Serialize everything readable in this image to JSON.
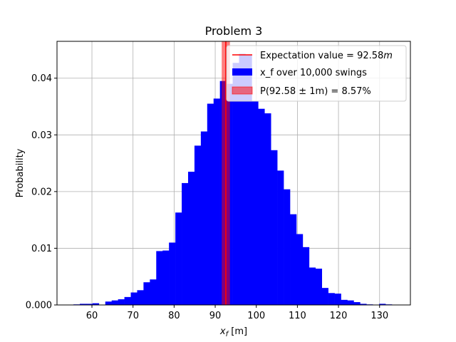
{
  "chart_data": {
    "type": "bar",
    "title": "Problem 3",
    "xlabel": "x_f [m]",
    "xlabel_main": "x",
    "xlabel_sub": "f",
    "xlabel_unit": " [m]",
    "ylabel": "Probability",
    "xlim": [
      51.5,
      137.5
    ],
    "ylim": [
      0,
      0.0465
    ],
    "xticks": [
      60,
      70,
      80,
      90,
      100,
      110,
      120,
      130
    ],
    "yticks": [
      0.0,
      0.01,
      0.02,
      0.03,
      0.04
    ],
    "ytick_labels": [
      "0.000",
      "0.01",
      "0.02",
      "0.03",
      "0.04"
    ],
    "grid": true,
    "legend_position": "top-right",
    "histogram": {
      "name": "x_f over 10,000 swings",
      "color": "#0000ff",
      "bin_start": 55.5,
      "bin_width": 1.55,
      "values": [
        0.0001,
        0.0002,
        0.0002,
        0.0003,
        0.0,
        0.0006,
        0.0008,
        0.001,
        0.0014,
        0.0022,
        0.0026,
        0.004,
        0.0045,
        0.0095,
        0.0096,
        0.011,
        0.0163,
        0.0215,
        0.0235,
        0.0281,
        0.0306,
        0.0355,
        0.0364,
        0.0395,
        0.039,
        0.0427,
        0.0443,
        0.0441,
        0.036,
        0.0346,
        0.0338,
        0.0273,
        0.0237,
        0.0204,
        0.016,
        0.0125,
        0.0102,
        0.0066,
        0.0064,
        0.003,
        0.0021,
        0.002,
        0.0009,
        0.0008,
        0.0005,
        0.0002,
        0.0001,
        0.0,
        0.0002,
        0.0001
      ]
    },
    "expectation": {
      "name": "Expectation value = 92.58m",
      "label_prefix": "Expectation value = 92.58",
      "label_unit": "m",
      "x": 92.58,
      "color": "#ff0000"
    },
    "probability_band": {
      "name": "P(92.58 ± 1m) = 8.57%",
      "label_main": "P(92.58 ± 1m) = 8.57%",
      "x_min": 91.58,
      "x_max": 93.58,
      "color": "#ff0000",
      "opacity": 0.5
    }
  }
}
